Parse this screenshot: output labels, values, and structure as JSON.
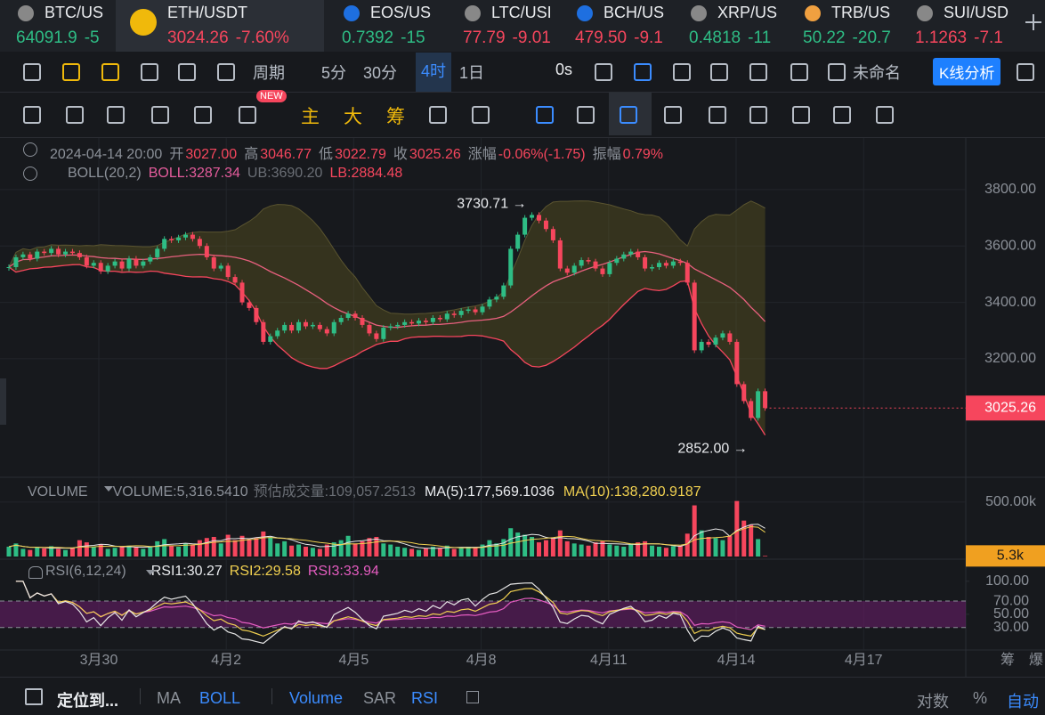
{
  "tickers": [
    {
      "symbol": "BTC/US",
      "price": "64091.9",
      "change": "-5",
      "color": "#2ebd85"
    },
    {
      "symbol": "ETH/USDT",
      "price": "3024.26",
      "change": "-7.60%",
      "color": "#f6465d"
    },
    {
      "symbol": "EOS/US",
      "price": "0.7392",
      "change": "-15",
      "color": "#2ebd85"
    },
    {
      "symbol": "LTC/USI",
      "price": "77.79",
      "change": "-9.01",
      "color": "#f6465d"
    },
    {
      "symbol": "BCH/US",
      "price": "479.50",
      "change": "-9.1",
      "color": "#f6465d"
    },
    {
      "symbol": "XRP/US",
      "price": "0.4818",
      "change": "-11",
      "color": "#2ebd85"
    },
    {
      "symbol": "TRB/US",
      "price": "50.22",
      "change": "-20.7",
      "color": "#2ebd85"
    },
    {
      "symbol": "SUI/USD",
      "price": "1.1263",
      "change": "-7.1",
      "color": "#f6465d"
    }
  ],
  "toolbar": {
    "period": "周期",
    "intervals": [
      "5分",
      "30分",
      "4时",
      "1日"
    ],
    "countdown": "0s",
    "layout_name": "未命名",
    "analysis_button": "K线分析",
    "new_badge": "NEW",
    "drawing_tools": [
      "主",
      "大",
      "筹"
    ]
  },
  "info": {
    "date": "2024-04-14 20:00",
    "open_label": "开",
    "open": "3027.00",
    "high_label": "高",
    "high": "3046.77",
    "low_label": "低",
    "low": "3022.79",
    "close_label": "收",
    "close": "3025.26",
    "change_label": "涨幅",
    "change": "-0.06%(-1.75)",
    "amplitude_label": "振幅",
    "amplitude": "0.79%"
  },
  "boll": {
    "name": "BOLL(20,2)",
    "mid": "BOLL:3287.34",
    "ub": "UB:3690.20",
    "lb": "LB:2884.48"
  },
  "volume_info": {
    "name": "VOLUME",
    "value": "VOLUME:5,316.5410",
    "estimate": "预估成交量:109,057.2513",
    "ma5": "MA(5):177,569.1036",
    "ma10": "MA(10):138,280.9187"
  },
  "rsi_info": {
    "name": "RSI(6,12,24)",
    "rsi1": "RSI1:30.27",
    "rsi2": "RSI2:29.58",
    "rsi3": "RSI3:33.94"
  },
  "axis_corner": [
    "筹",
    "爆"
  ],
  "bottom_bar": {
    "locate": "定位到...",
    "indicators": [
      {
        "name": "MA",
        "active": false
      },
      {
        "name": "BOLL",
        "active": true
      },
      {
        "name": "Volume",
        "active": true
      },
      {
        "name": "SAR",
        "active": false
      },
      {
        "name": "RSI",
        "active": true
      }
    ],
    "right": [
      {
        "name": "对数",
        "active": false
      },
      {
        "name": "%",
        "active": false
      },
      {
        "name": "自动",
        "active": true
      }
    ]
  },
  "chart_data": {
    "type": "candlestick",
    "categories": [
      "3月30",
      "4月2",
      "4月5",
      "4月8",
      "4月11",
      "4月14",
      "4月17"
    ],
    "closes": [
      3525,
      3560,
      3570,
      3555,
      3580,
      3575,
      3590,
      3570,
      3580,
      3575,
      3560,
      3530,
      3540,
      3510,
      3530,
      3545,
      3520,
      3555,
      3530,
      3545,
      3560,
      3590,
      3625,
      3620,
      3630,
      3640,
      3625,
      3600,
      3560,
      3520,
      3530,
      3490,
      3470,
      3400,
      3380,
      3330,
      3260,
      3280,
      3300,
      3320,
      3300,
      3330,
      3315,
      3320,
      3305,
      3290,
      3330,
      3345,
      3360,
      3345,
      3320,
      3290,
      3270,
      3310,
      3315,
      3320,
      3330,
      3325,
      3335,
      3330,
      3345,
      3340,
      3360,
      3355,
      3370,
      3375,
      3365,
      3385,
      3410,
      3420,
      3460,
      3590,
      3640,
      3700,
      3710,
      3690,
      3660,
      3620,
      3520,
      3505,
      3530,
      3550,
      3545,
      3520,
      3500,
      3540,
      3555,
      3570,
      3580,
      3560,
      3520,
      3525,
      3540,
      3530,
      3545,
      3540,
      3470,
      3230,
      3260,
      3250,
      3275,
      3290,
      3260,
      3110,
      3050,
      2990,
      3085,
      3025.26
    ],
    "volumes": [
      90000,
      120000,
      70000,
      60000,
      85000,
      75000,
      95000,
      70000,
      60000,
      80000,
      150000,
      130000,
      90000,
      110000,
      70000,
      80000,
      95000,
      100000,
      85000,
      70000,
      90000,
      140000,
      160000,
      100000,
      90000,
      120000,
      110000,
      150000,
      170000,
      180000,
      120000,
      200000,
      150000,
      190000,
      160000,
      170000,
      230000,
      180000,
      120000,
      140000,
      100000,
      110000,
      90000,
      80000,
      70000,
      110000,
      130000,
      150000,
      190000,
      120000,
      140000,
      170000,
      180000,
      120000,
      110000,
      90000,
      80000,
      70000,
      60000,
      75000,
      90000,
      80000,
      100000,
      70000,
      85000,
      90000,
      80000,
      110000,
      150000,
      120000,
      160000,
      260000,
      220000,
      200000,
      180000,
      130000,
      150000,
      170000,
      240000,
      140000,
      120000,
      110000,
      100000,
      130000,
      140000,
      110000,
      100000,
      90000,
      120000,
      130000,
      140000,
      100000,
      90000,
      80000,
      95000,
      100000,
      210000,
      470000,
      240000,
      180000,
      170000,
      150000,
      190000,
      510000,
      330000,
      290000,
      160000,
      5316.541
    ],
    "ylim": [
      2783,
      3967
    ],
    "yticks": [
      {
        "value": 3800,
        "label": "3800.00"
      },
      {
        "value": 3600,
        "label": "3600.00"
      },
      {
        "value": 3400,
        "label": "3400.00"
      },
      {
        "value": 3200,
        "label": "3200.00"
      }
    ],
    "last_price": 3025.26,
    "volume_ylim": [
      0,
      720000
    ],
    "volume_yticks": [
      {
        "value": 500000,
        "label": "500.00k"
      }
    ],
    "last_volume_label": "5.3k",
    "rsi_ylim": [
      0,
      128
    ],
    "rsi_yticks": [
      {
        "value": 100,
        "label": "100.00"
      },
      {
        "value": 70,
        "label": "70.00"
      },
      {
        "value": 50,
        "label": "50.00"
      },
      {
        "value": 30,
        "label": "30.00"
      }
    ],
    "annotations": [
      "3730.71 →",
      "2852.00 →"
    ],
    "up_color": "#2ebd85",
    "down_color": "#f6465d"
  }
}
